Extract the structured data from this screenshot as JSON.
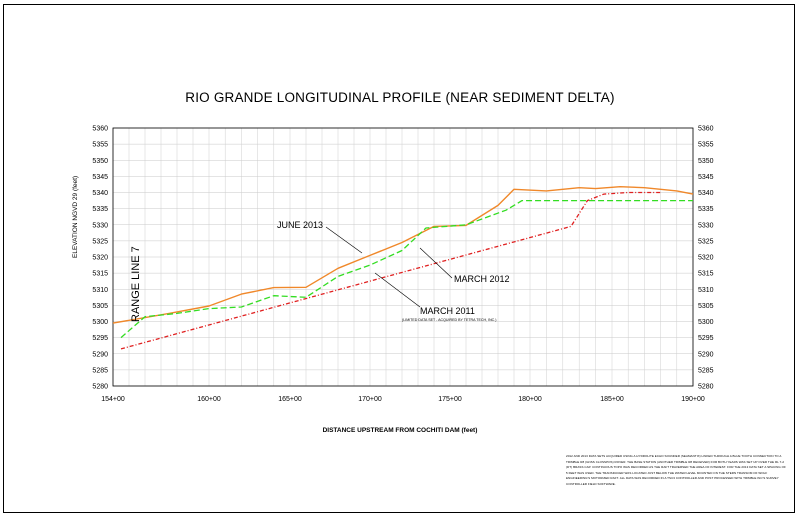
{
  "chart_data": {
    "type": "line",
    "title": "RIO GRANDE LONGITUDINAL PROFILE (NEAR SEDIMENT DELTA)",
    "xlabel": "DISTANCE UPSTREAM FROM COCHITI DAM (feet)",
    "ylabel": "ELEVATION NGVD 29 (feet)",
    "xlim": [
      15400,
      19000
    ],
    "ylim": [
      5280,
      5360
    ],
    "x_ticks": [
      15400,
      16000,
      16500,
      17000,
      17500,
      18000,
      18500,
      19000
    ],
    "x_tick_labels": [
      "154+00",
      "160+00",
      "165+00",
      "170+00",
      "175+00",
      "180+00",
      "185+00",
      "190+00"
    ],
    "y_ticks": [
      5280,
      5285,
      5290,
      5295,
      5300,
      5305,
      5310,
      5315,
      5320,
      5325,
      5330,
      5335,
      5340,
      5345,
      5350,
      5355,
      5360
    ],
    "grid": true,
    "series": [
      {
        "name": "JUNE 2013",
        "color": "#f0882a",
        "style": "solid",
        "x": [
          15400,
          15750,
          16000,
          16200,
          16400,
          16600,
          16800,
          17000,
          17200,
          17400,
          17600,
          17800,
          17900,
          18100,
          18300,
          18400,
          18550,
          18700,
          18900,
          19000
        ],
        "y": [
          5299.5,
          5302.5,
          5304.8,
          5308.5,
          5310.5,
          5310.6,
          5316.5,
          5320.5,
          5324.5,
          5329.5,
          5329.8,
          5336,
          5341,
          5340.5,
          5341.5,
          5341.2,
          5341.8,
          5341.5,
          5340.5,
          5339.5
        ]
      },
      {
        "name": "MARCH 2012",
        "color": "#33dd22",
        "style": "dashed",
        "x": [
          15450,
          15600,
          15800,
          16000,
          16200,
          16400,
          16600,
          16800,
          17000,
          17200,
          17350,
          17600,
          17850,
          17950,
          18200,
          18500,
          18800,
          19000
        ],
        "y": [
          5295,
          5301.5,
          5302.5,
          5304,
          5304.5,
          5308,
          5307.5,
          5314,
          5317.5,
          5322,
          5329,
          5330,
          5334.5,
          5337.5,
          5337.5,
          5337.5,
          5337.5,
          5337.5
        ]
      },
      {
        "name": "MARCH 2011",
        "color": "#e02020",
        "style": "dash-dot",
        "x": [
          15450,
          18250,
          18350,
          18450,
          18600,
          18800
        ],
        "y": [
          5291.5,
          5329.5,
          5337.5,
          5339.5,
          5340,
          5340
        ]
      }
    ],
    "annotations": {
      "june_2013": "JUNE 2013",
      "march_2012": "MARCH 2012",
      "march_2011": "MARCH 2011",
      "march_2011_note": "(LIMITED DATA SET - ACQUIRED BY TETRA TECH, INC.)"
    }
  },
  "range_line_label": "RANGE LINE 7",
  "notes": "2012 AND 2013 DATA SETS ACQUIRED USING A HYDROLITE ECHO SOUNDER (SEAMANTIX) LINKED THROUGH A BLUE TOOTH CONNECTION TO A TRIMBLE R8 (GNSS CLOSSPOS) ROVER. THE BASE STATION (ANOTHER TRIMBLE R8 RECEIVER) FOR BOTH YEARS WAS SET UP OVER THE RL 7-2 (DT) BRASS CAP. CONTINUOUS TOPO WAS RECORDED AS THE RAFT TRAVERSED THE AREA OF INTEREST. FOR THE 2013 DATA SET A SPACING OF 5 FEET WAS USED. THE TRANSDUCER WAS LOCATED JUST BELOW THE WATER LEVEL MOUNTED ON THE STERN TRANSOM OF WOLF ENGINEERING'S MOTORIZED RAFT. ALL DATA WAS RECORDED IN A TSC3 CONTROLLER AND POST PROCESSED WITH TRIMBLE INC'S SURVEY CONTROLLER FIELD SOFTWARE."
}
